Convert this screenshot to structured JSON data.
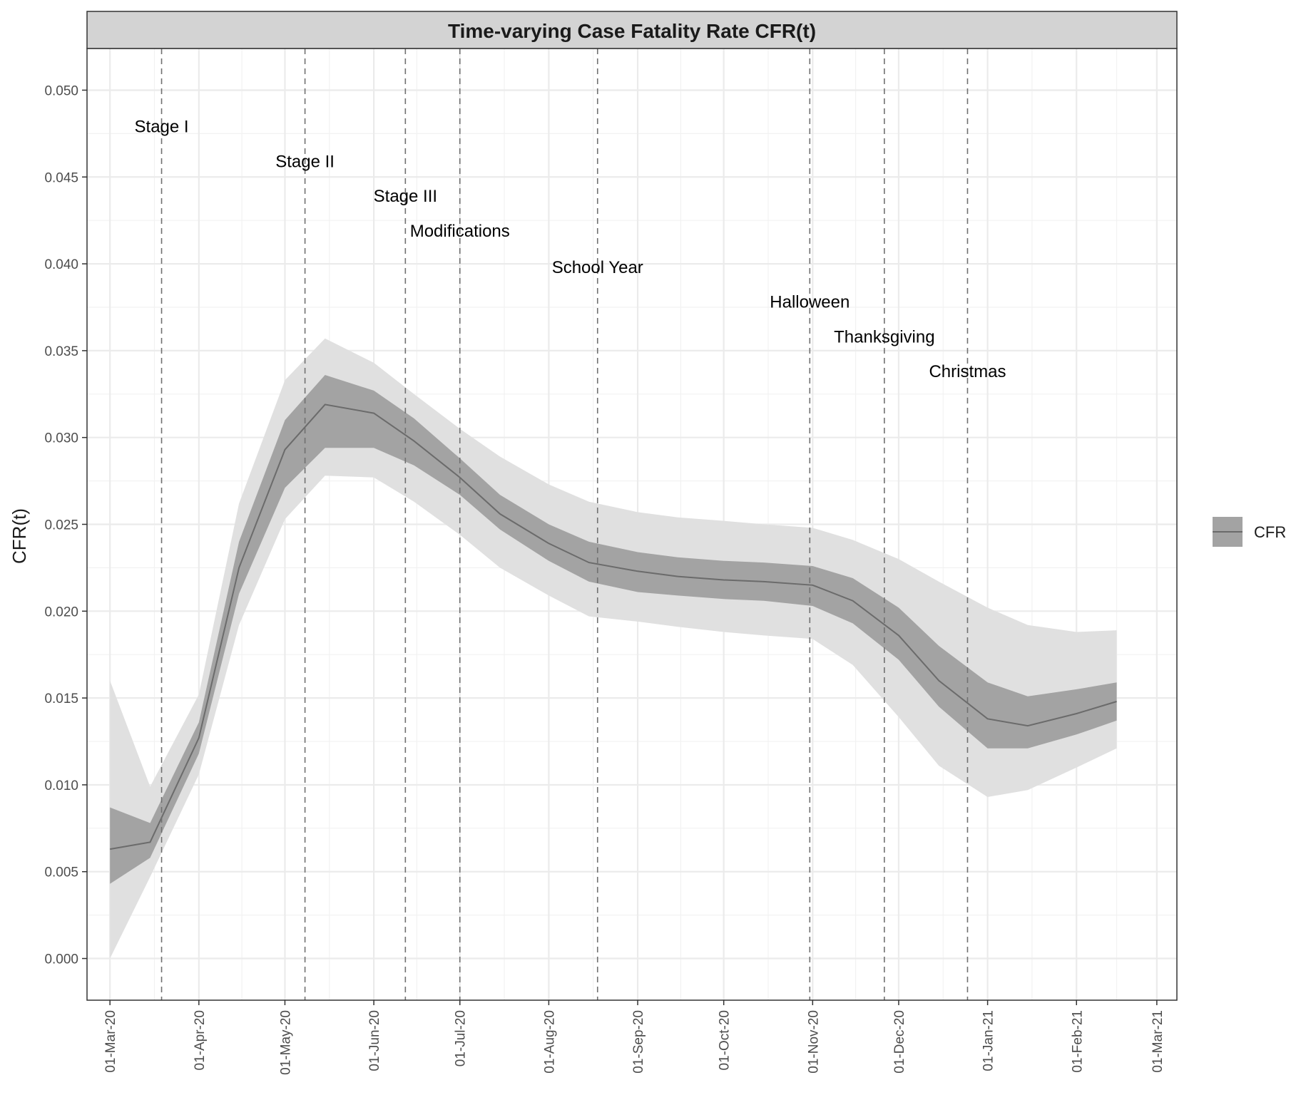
{
  "chart_data": {
    "type": "line",
    "title": "Time-varying Case Fatality Rate CFR(t)",
    "xlabel": "",
    "ylabel": "CFR(t)",
    "x_tick_labels": [
      "01-Mar-20",
      "01-Apr-20",
      "01-May-20",
      "01-Jun-20",
      "01-Jul-20",
      "01-Aug-20",
      "01-Sep-20",
      "01-Oct-20",
      "01-Nov-20",
      "01-Dec-20",
      "01-Jan-21",
      "01-Feb-21",
      "01-Mar-21"
    ],
    "y_tick_labels": [
      "0.000",
      "0.005",
      "0.010",
      "0.015",
      "0.020",
      "0.025",
      "0.030",
      "0.035",
      "0.040",
      "0.045",
      "0.050"
    ],
    "xlim": [
      "2020-02-22",
      "2021-03-08"
    ],
    "ylim": [
      -0.0024,
      0.0524
    ],
    "grid": true,
    "legend": {
      "position": "right",
      "label": "CFR"
    },
    "colors": {
      "line": "#6b6b6b",
      "inner_band": "#a3a3a3",
      "outer_band": "#e0e0e0",
      "strip": "#d3d3d3",
      "grid": "#ebebeb",
      "event_line": "#707070"
    },
    "series": [
      {
        "name": "CFR",
        "x": [
          "2020-03-01",
          "2020-03-15",
          "2020-04-01",
          "2020-04-15",
          "2020-05-01",
          "2020-05-15",
          "2020-06-01",
          "2020-06-15",
          "2020-07-01",
          "2020-07-15",
          "2020-08-01",
          "2020-08-15",
          "2020-09-01",
          "2020-09-15",
          "2020-10-01",
          "2020-10-15",
          "2020-11-01",
          "2020-11-15",
          "2020-12-01",
          "2020-12-15",
          "2021-01-01",
          "2021-01-15",
          "2021-02-01",
          "2021-02-15"
        ],
        "y": [
          0.0063,
          0.0067,
          0.0127,
          0.0225,
          0.0293,
          0.0319,
          0.0314,
          0.0298,
          0.0277,
          0.0256,
          0.0239,
          0.0228,
          0.0223,
          0.022,
          0.0218,
          0.0217,
          0.0215,
          0.0206,
          0.0186,
          0.016,
          0.0138,
          0.0134,
          0.0141,
          0.0148
        ],
        "inner_low": [
          0.0043,
          0.0058,
          0.0118,
          0.021,
          0.0271,
          0.0294,
          0.0294,
          0.0284,
          0.0267,
          0.0247,
          0.0229,
          0.0217,
          0.0211,
          0.0209,
          0.0207,
          0.0206,
          0.0203,
          0.0193,
          0.0172,
          0.0145,
          0.0121,
          0.0121,
          0.0129,
          0.0137
        ],
        "inner_high": [
          0.0087,
          0.0078,
          0.0136,
          0.024,
          0.031,
          0.0336,
          0.0327,
          0.0311,
          0.0288,
          0.0267,
          0.025,
          0.024,
          0.0234,
          0.0231,
          0.0229,
          0.0228,
          0.0226,
          0.0219,
          0.0202,
          0.018,
          0.0159,
          0.0151,
          0.0155,
          0.0159
        ],
        "outer_low": [
          0.0,
          0.0047,
          0.0106,
          0.0192,
          0.0253,
          0.0278,
          0.0277,
          0.0263,
          0.0244,
          0.0225,
          0.0209,
          0.0197,
          0.0194,
          0.0191,
          0.0188,
          0.0186,
          0.0184,
          0.0169,
          0.0139,
          0.0111,
          0.0093,
          0.0097,
          0.011,
          0.0121
        ],
        "outer_high": [
          0.016,
          0.0099,
          0.0152,
          0.0262,
          0.0333,
          0.0357,
          0.0343,
          0.0325,
          0.0305,
          0.0289,
          0.0273,
          0.0263,
          0.0257,
          0.0254,
          0.0252,
          0.025,
          0.0248,
          0.0241,
          0.023,
          0.0217,
          0.0202,
          0.0192,
          0.0188,
          0.0189
        ]
      }
    ],
    "events": [
      {
        "label": "Stage I",
        "date": "2020-03-19",
        "label_y": 0.0479
      },
      {
        "label": "Stage II",
        "date": "2020-05-08",
        "label_y": 0.0459
      },
      {
        "label": "Stage III",
        "date": "2020-06-12",
        "label_y": 0.0439
      },
      {
        "label": "Modifications",
        "date": "2020-07-01",
        "label_y": 0.0419
      },
      {
        "label": "School Year",
        "date": "2020-08-18",
        "label_y": 0.0398
      },
      {
        "label": "Halloween",
        "date": "2020-10-31",
        "label_y": 0.0378
      },
      {
        "label": "Thanksgiving",
        "date": "2020-11-26",
        "label_y": 0.0358
      },
      {
        "label": "Christmas",
        "date": "2020-12-25",
        "label_y": 0.0338
      }
    ]
  }
}
